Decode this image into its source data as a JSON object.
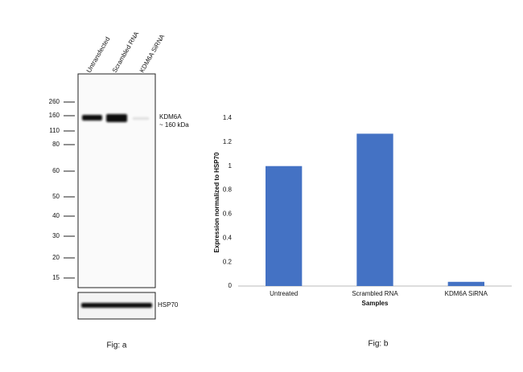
{
  "blot": {
    "lanes": [
      "Untransfected",
      "Scrambled RNA",
      "KDM6A SiRNA"
    ],
    "markers": [
      "260",
      "160",
      "110",
      "80",
      "60",
      "50",
      "40",
      "30",
      "20",
      "15"
    ],
    "band_label": "KDM6A",
    "band_size": "~ 160 kDa",
    "control_label": "HSP70",
    "caption": "Fig: a"
  },
  "chart_data": {
    "type": "bar",
    "categories": [
      "Untreated",
      "Scrambled RNA",
      "KDM6A SiRNA"
    ],
    "values": [
      1,
      1.27,
      0.035
    ],
    "color": "#4472c4",
    "x_label": "Samples",
    "y_label": "Expression normalized to HSP70",
    "ylim": [
      0,
      1.4
    ],
    "yticks": [
      0,
      0.2,
      0.4,
      0.6,
      0.8,
      1,
      1.2,
      1.4
    ],
    "grid": false,
    "caption": "Fig: b"
  }
}
